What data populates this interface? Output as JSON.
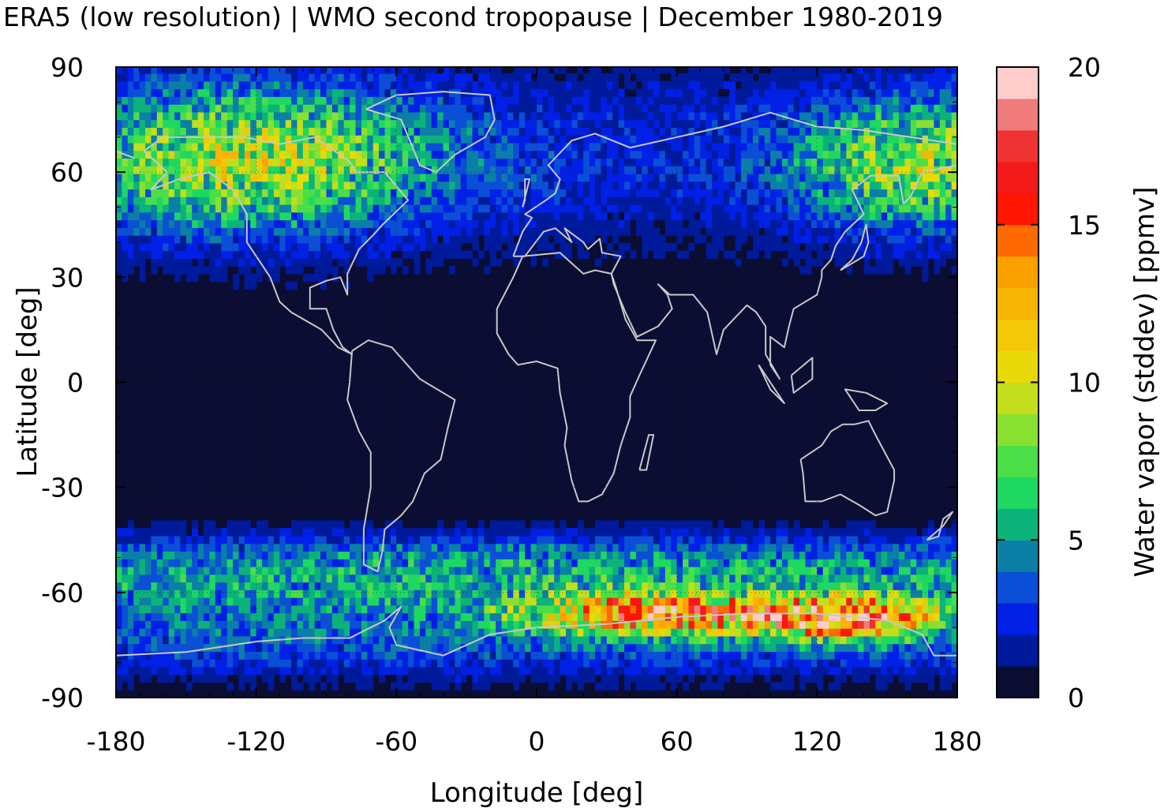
{
  "chart_data": {
    "type": "heatmap",
    "title": "ERA5 (low resolution) | WMO second tropopause | December 1980-2019",
    "xlabel": "Longitude [deg]",
    "ylabel": "Latitude [deg]",
    "colorbar_label": "Water vapor (stddev) [ppmv]",
    "xlim": [
      -180,
      180
    ],
    "ylim": [
      -90,
      90
    ],
    "xticks": [
      -180,
      -120,
      -60,
      0,
      60,
      120,
      180
    ],
    "yticks": [
      90,
      60,
      30,
      0,
      -30,
      -60,
      -90
    ],
    "colorbar": {
      "range": [
        0,
        20
      ],
      "ticks": [
        20,
        15,
        10,
        5,
        0
      ],
      "levels": [
        {
          "from": 0,
          "to": 1,
          "color": "#0b0d33"
        },
        {
          "from": 1,
          "to": 2,
          "color": "#001a9c"
        },
        {
          "from": 2,
          "to": 3,
          "color": "#0020e6"
        },
        {
          "from": 3,
          "to": 4,
          "color": "#0a4fd6"
        },
        {
          "from": 4,
          "to": 5,
          "color": "#0b7fa6"
        },
        {
          "from": 5,
          "to": 6,
          "color": "#0bb37a"
        },
        {
          "from": 6,
          "to": 7,
          "color": "#1ed861"
        },
        {
          "from": 7,
          "to": 8,
          "color": "#4ade48"
        },
        {
          "from": 8,
          "to": 9,
          "color": "#8ae030"
        },
        {
          "from": 9,
          "to": 10,
          "color": "#c2de1c"
        },
        {
          "from": 10,
          "to": 11,
          "color": "#e8da08"
        },
        {
          "from": 11,
          "to": 12,
          "color": "#f2c808"
        },
        {
          "from": 12,
          "to": 13,
          "color": "#f7b504"
        },
        {
          "from": 13,
          "to": 14,
          "color": "#fba200"
        },
        {
          "from": 14,
          "to": 15,
          "color": "#ff6a00"
        },
        {
          "from": 15,
          "to": 16,
          "color": "#ff1500"
        },
        {
          "from": 16,
          "to": 17,
          "color": "#f51a1a"
        },
        {
          "from": 17,
          "to": 18,
          "color": "#ef3333"
        },
        {
          "from": 18,
          "to": 19,
          "color": "#f07b7b"
        },
        {
          "from": 19,
          "to": 20,
          "color": "#ffcccc"
        }
      ]
    },
    "coastline_color": "#c8c8c8",
    "grid": true
  }
}
